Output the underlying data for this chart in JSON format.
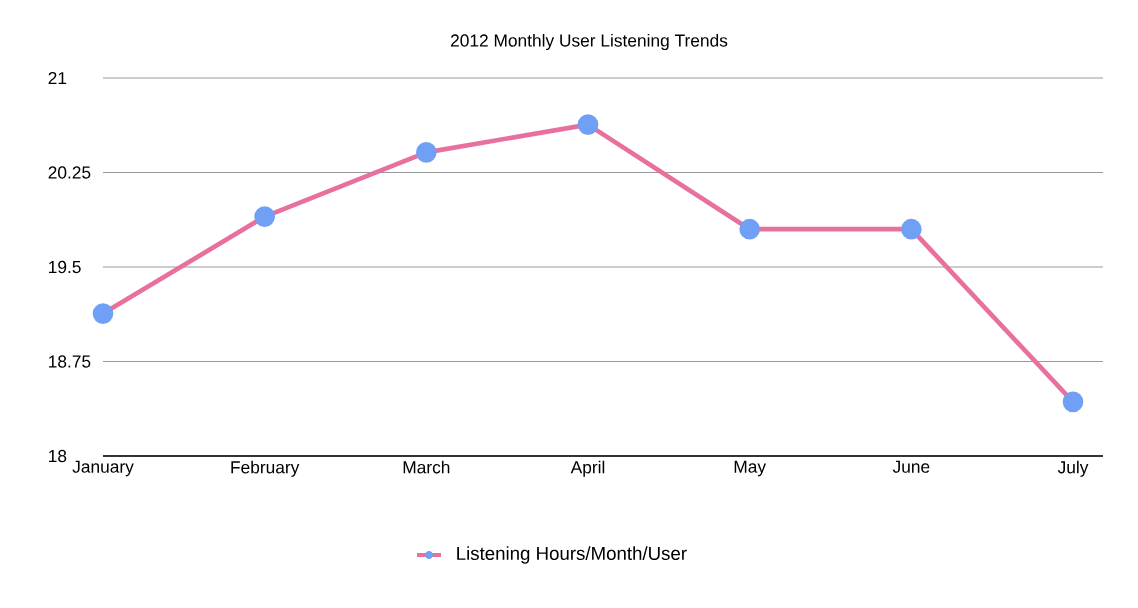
{
  "chart_data": {
    "type": "line",
    "title": "2012 Monthly User Listening Trends",
    "categories": [
      "January",
      "February",
      "March",
      "April",
      "May",
      "June",
      "July"
    ],
    "series": [
      {
        "name": "Listening Hours/Month/User",
        "color": "#e8709e",
        "colors": [
          "#6fa0f5",
          "#6fa0f5",
          "#6fa0f5",
          "#6fa0f5",
          "#6fa0f5",
          "#6fa0f5",
          "#6fa0f5"
        ],
        "values": [
          19.13,
          19.9,
          20.41,
          20.63,
          19.8,
          19.8,
          18.43
        ]
      }
    ],
    "ylim": [
      18,
      21
    ],
    "yticks": [
      18,
      18.75,
      19.5,
      20.25,
      21
    ],
    "grid": "y",
    "legend": "bottom",
    "marker": "circle",
    "line_style": "solid"
  }
}
